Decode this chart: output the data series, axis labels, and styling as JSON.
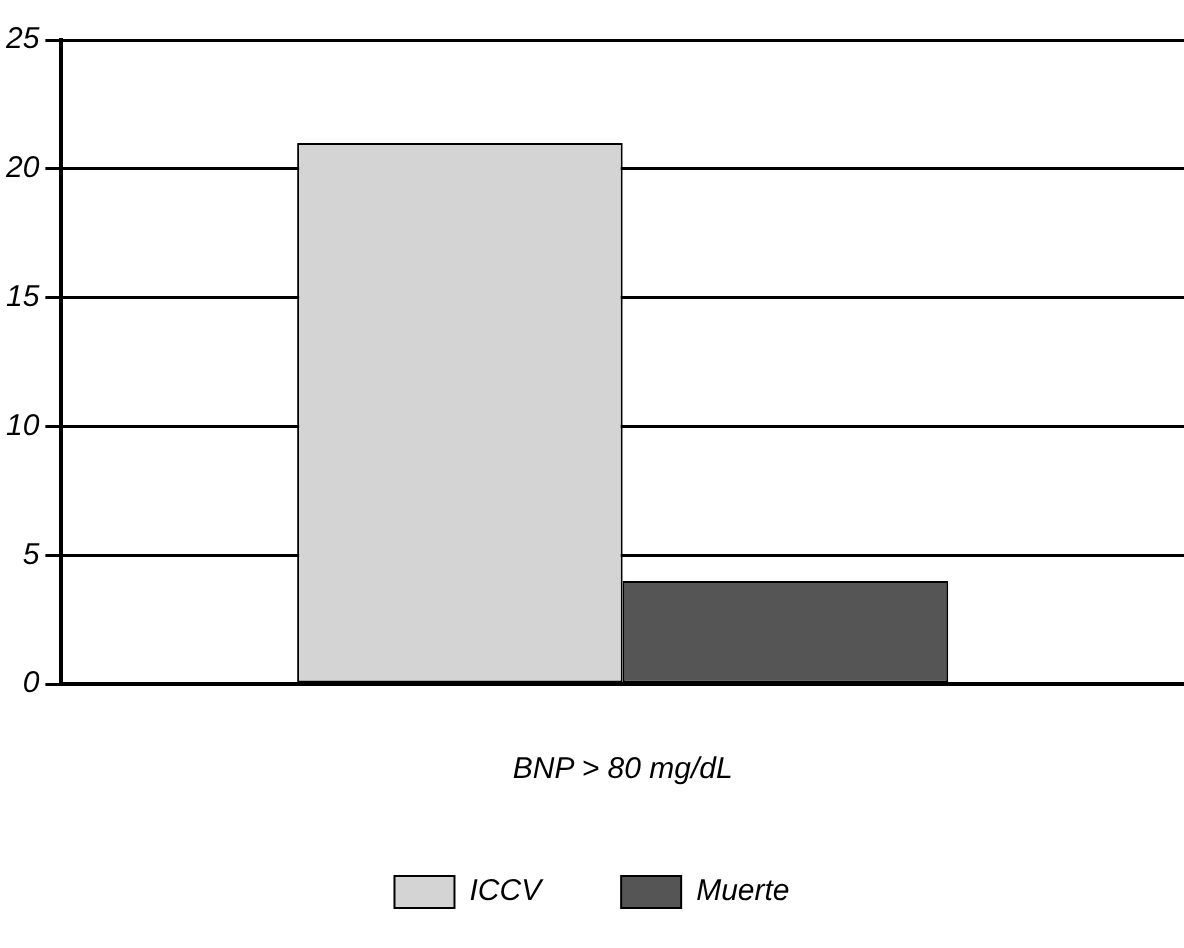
{
  "chart_data": {
    "type": "bar",
    "xlabel": "BNP > 80 mg/dL",
    "categories": [
      null
    ],
    "series": [
      {
        "name": "ICCV",
        "color": "#d4d4d4",
        "values": [
          21
        ]
      },
      {
        "name": "Muerte",
        "color": "#555555",
        "values": [
          4
        ]
      }
    ],
    "ylim": [
      0,
      25
    ],
    "yticks": [
      0,
      5,
      10,
      15,
      20,
      25
    ],
    "grid": "y",
    "legend": "bottom"
  }
}
